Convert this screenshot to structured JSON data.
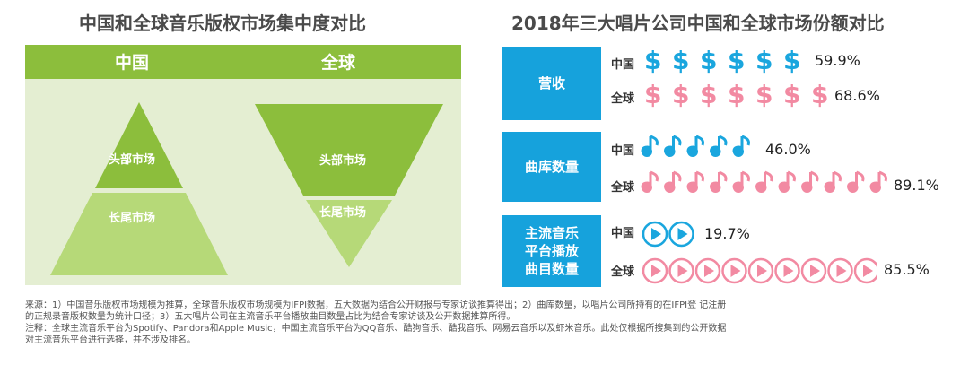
{
  "left_title": "中国和全球音乐版权市场集中度对比",
  "left_panel": {
    "china_label": "中国",
    "global_label": "全球",
    "head_market": "头部市场",
    "long_tail": "长尾市场"
  },
  "right_title": "2018年三大唱片公司中国和全球市场份额对比",
  "colors": {
    "green": "#8cbe3c",
    "light_green": "#e4eed2",
    "blue": "#1aa6de",
    "pink": "#f28aa2"
  },
  "chart_data": {
    "type": "table",
    "title": "2018年三大唱片公司中国和全球市场份额对比",
    "categories": [
      "营收",
      "曲库数量",
      "主流音乐平台播放曲目数量"
    ],
    "series": [
      {
        "name": "中国",
        "values": [
          59.9,
          46.0,
          19.7
        ]
      },
      {
        "name": "全球",
        "values": [
          68.6,
          89.1,
          85.5
        ]
      }
    ],
    "unit": "%"
  },
  "rows": [
    {
      "category": "营收",
      "icon": "dollar-icon",
      "china": {
        "label": "中国",
        "value": "59.9%"
      },
      "global": {
        "label": "全球",
        "value": "68.6%"
      }
    },
    {
      "category": "曲库数量",
      "icon": "music-note-icon",
      "china": {
        "label": "中国",
        "value": "46.0%"
      },
      "global": {
        "label": "全球",
        "value": "89.1%"
      }
    },
    {
      "category": "主流音乐\n平台播放\n曲目数量",
      "icon": "play-icon",
      "china": {
        "label": "中国",
        "value": "19.7%"
      },
      "global": {
        "label": "全球",
        "value": "85.5%"
      }
    }
  ],
  "notes": [
    "来源：1）中国音乐版权市场规模为推算，全球音乐版权市场规模为IFPI数据，五大数据为结合公开财报与专家访谈推算得出；2）曲库数量，以唱片公司所持有的在IFPI登 记注册",
    "的正规录音版权数量为统计口径；3）五大唱片公司在主流音乐平台播放曲目数量占比为结合专家访谈及公开数据推算所得。",
    "注释：全球主流音乐平台为Spotify、Pandora和Apple Music，中国主流音乐平台为QQ音乐、酷狗音乐、酷我音乐、网易云音乐以及虾米音乐。此处仅根据所搜集到的公开数据",
    "对主流音乐平台进行选择，并不涉及排名。"
  ]
}
